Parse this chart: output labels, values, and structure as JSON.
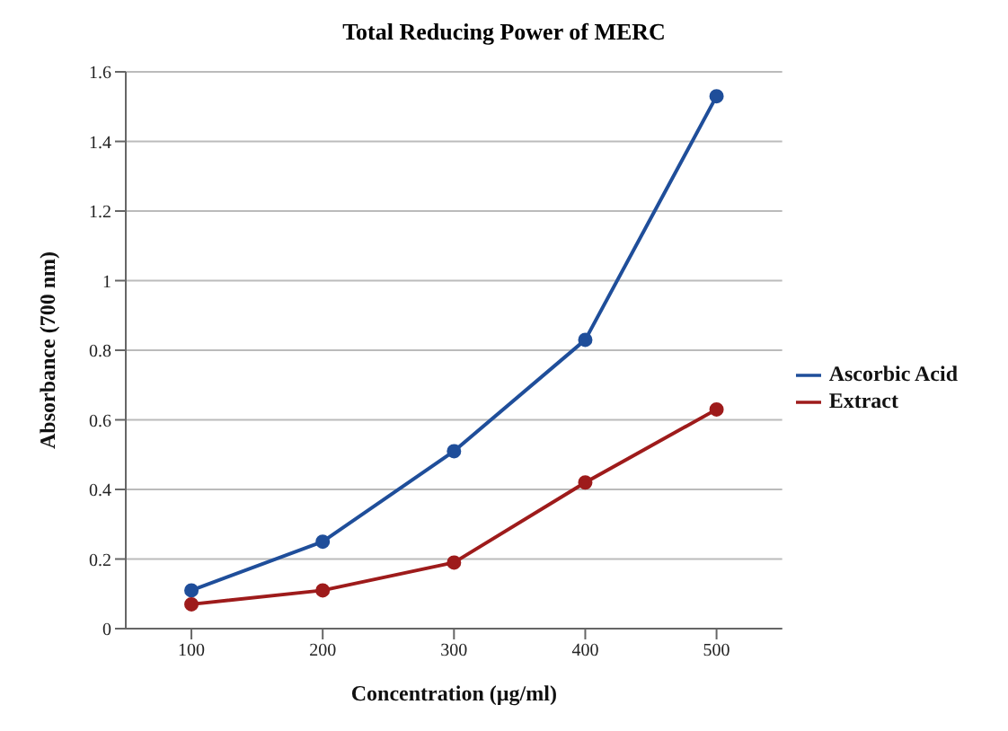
{
  "chart_data": {
    "type": "line",
    "title": "Total Reducing Power of MERC",
    "xlabel": "Concentration (µg/ml)",
    "ylabel": "Absorbance (700 nm)",
    "x": [
      100,
      200,
      300,
      400,
      500
    ],
    "series": [
      {
        "name": "Ascorbic Acid",
        "color": "#1f4e9a",
        "values": [
          0.11,
          0.25,
          0.51,
          0.83,
          1.53
        ]
      },
      {
        "name": "Extract",
        "color": "#9e1b1b",
        "values": [
          0.07,
          0.11,
          0.19,
          0.42,
          0.63
        ]
      }
    ],
    "xlim": [
      50,
      550
    ],
    "xticks": [
      100,
      200,
      300,
      400,
      500
    ],
    "ylim": [
      0,
      1.6
    ],
    "yticks": [
      0,
      0.2,
      0.4,
      0.6,
      0.8,
      1,
      1.2,
      1.4,
      1.6
    ],
    "grid": "y",
    "legend": "right",
    "marker": "circle",
    "line_style": "solid"
  }
}
